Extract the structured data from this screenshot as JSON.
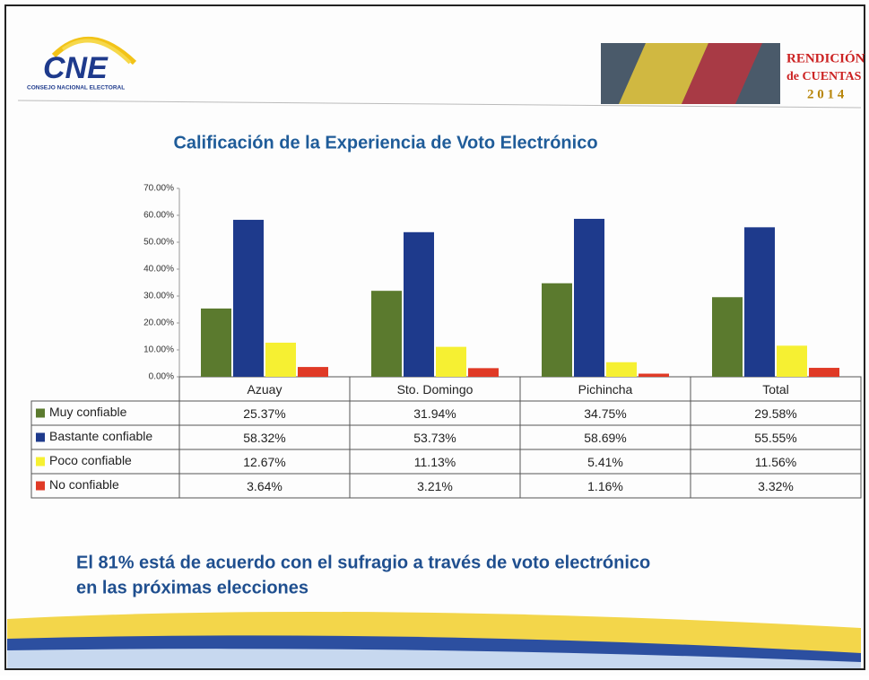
{
  "header": {
    "logo": "CNE",
    "org": "CONSEJO NACIONAL ELECTORAL",
    "badge_line1": "RENDICIÓN",
    "badge_line2": "de CUENTAS",
    "badge_year": "2 0 1 4"
  },
  "chart_data": {
    "type": "bar",
    "title": "Calificación de la Experiencia de Voto Electrónico",
    "categories": [
      "Azuay",
      "Sto. Domingo",
      "Pichincha",
      "Total"
    ],
    "series": [
      {
        "name": "Muy confiable",
        "color": "#5b7a2e",
        "values": [
          25.37,
          31.94,
          34.75,
          29.58
        ],
        "value_labels": [
          "25.37%",
          "31.94%",
          "34.75%",
          "29.58%"
        ]
      },
      {
        "name": "Bastante confiable",
        "color": "#1e3a8c",
        "values": [
          58.32,
          53.73,
          58.69,
          55.55
        ],
        "value_labels": [
          "58.32%",
          "53.73%",
          "58.69%",
          "55.55%"
        ]
      },
      {
        "name": "Poco confiable",
        "color": "#f6f032",
        "values": [
          12.67,
          11.13,
          5.41,
          11.56
        ],
        "value_labels": [
          "12.67%",
          "11.13%",
          "5.41%",
          "11.56%"
        ]
      },
      {
        "name": "No confiable",
        "color": "#e03a26",
        "values": [
          3.64,
          3.21,
          1.16,
          3.32
        ],
        "value_labels": [
          "3.64%",
          "3.21%",
          "1.16%",
          "3.32%"
        ]
      }
    ],
    "ylim": [
      0,
      70
    ],
    "yticks": [
      {
        "value": 0,
        "label": "0.00%"
      },
      {
        "value": 10,
        "label": "10.00%"
      },
      {
        "value": 20,
        "label": "20.00%"
      },
      {
        "value": 30,
        "label": "30.00%"
      },
      {
        "value": 40,
        "label": "40.00%"
      },
      {
        "value": 50,
        "label": "50.00%"
      },
      {
        "value": 60,
        "label": "60.00%"
      },
      {
        "value": 70,
        "label": "70.00%"
      }
    ],
    "grid": false
  },
  "footer": {
    "line1": "El 81% está de acuerdo con el sufragio a través de voto electrónico",
    "line2": "en las próximas elecciones"
  }
}
